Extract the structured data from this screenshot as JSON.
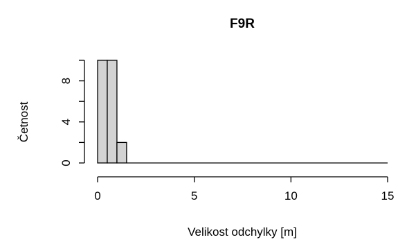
{
  "chart_data": {
    "type": "bar",
    "title": "F9R",
    "xlabel": "Velikost odchylky [m]",
    "ylabel": "Četnost",
    "xlim": [
      0,
      15
    ],
    "ylim": [
      0,
      10
    ],
    "x_ticks": [
      "0",
      "5",
      "10",
      "15"
    ],
    "y_ticks": [
      "0",
      "4",
      "8"
    ],
    "grid": false,
    "bin_width": 0.5,
    "bins": [
      {
        "start": 0.0,
        "end": 0.5,
        "count": 10
      },
      {
        "start": 0.5,
        "end": 1.0,
        "count": 10
      },
      {
        "start": 1.0,
        "end": 1.5,
        "count": 2
      },
      {
        "start": 1.5,
        "end": 15.0,
        "count": 0
      }
    ],
    "colors": {
      "bar_fill": "#d3d3d3",
      "bar_stroke": "#000000"
    }
  }
}
